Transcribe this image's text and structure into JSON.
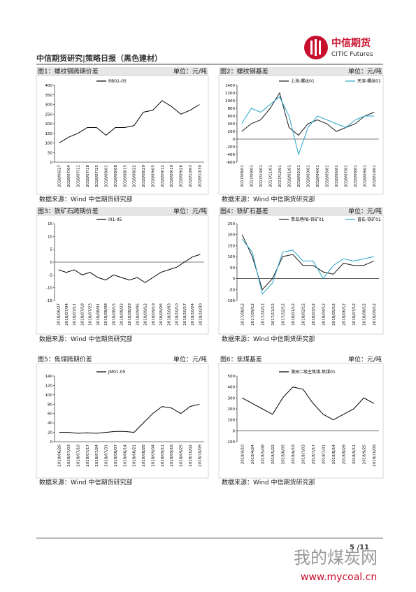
{
  "header": {
    "title": "中信期货研究|策略日报（黑色建材）",
    "logo_cn": "中信期货",
    "logo_en": "CITIC Futures"
  },
  "chart_data": [
    {
      "type": "line",
      "title": "图1：螺纹钢跨期价差",
      "unit": "单位：元/吨",
      "source": "数据来源：Wind 中信期货研究部",
      "categories": [
        "2018/06/27",
        "2018/07/04",
        "2018/07/11",
        "2018/07/18",
        "2018/07/25",
        "2018/08/01",
        "2018/08/08",
        "2018/08/15",
        "2018/08/22",
        "2018/08/29",
        "2018/09/05",
        "2018/09/12",
        "2018/09/19",
        "2018/09/26",
        "2018/10/03",
        "2018/10/30"
      ],
      "series": [
        {
          "name": "RB01-05",
          "color": "#000000",
          "values": [
            100,
            130,
            150,
            180,
            180,
            140,
            180,
            180,
            190,
            260,
            270,
            320,
            290,
            250,
            270,
            300
          ]
        }
      ],
      "ylim": [
        0,
        400
      ],
      "yticks": [
        0,
        50,
        100,
        150,
        200,
        250,
        300,
        350,
        400
      ]
    },
    {
      "type": "line",
      "title": "图2：螺纹钢基差",
      "unit": "单位：元/吨",
      "source": "数据来源：Wind 中信期货研究部",
      "categories": [
        "2017/08/01",
        "2017/09/01",
        "2017/10/01",
        "2017/11/01",
        "2017/12/01",
        "2018/01/01",
        "2018/02/01",
        "2018/03/01",
        "2018/04/01",
        "2018/05/01",
        "2018/06/01",
        "2018/07/01",
        "2018/08/01",
        "2018/09/01",
        "2018/10/01"
      ],
      "series": [
        {
          "name": "上海-螺纹01",
          "color": "#1a1a1a",
          "values": [
            200,
            400,
            500,
            800,
            1200,
            300,
            100,
            400,
            500,
            400,
            200,
            300,
            400,
            600,
            700
          ]
        },
        {
          "name": "天津-螺纹01",
          "color": "#2aa7c9",
          "values": [
            400,
            800,
            700,
            900,
            1100,
            600,
            -400,
            300,
            600,
            500,
            400,
            300,
            500,
            600,
            600
          ]
        }
      ],
      "ylim": [
        -600,
        1400
      ],
      "yticks": [
        -600,
        -400,
        -200,
        0,
        200,
        400,
        600,
        800,
        1000,
        1200,
        1400
      ]
    },
    {
      "type": "line",
      "title": "图3：铁矿石跨期价差",
      "unit": "单位：元/吨",
      "source": "数据来源：Wind 中信期货研究部",
      "categories": [
        "2018/06/27",
        "2018/07/04",
        "2018/07/11",
        "2018/07/18",
        "2018/07/25",
        "2018/08/01",
        "2018/08/08",
        "2018/08/15",
        "2018/08/22",
        "2018/08/29",
        "2018/09/05",
        "2018/09/12",
        "2018/09/19",
        "2018/09/26",
        "2018/10/03",
        "2018/10/10",
        "2018/10/17",
        "2018/10/24",
        "2018/10/30"
      ],
      "series": [
        {
          "name": "I01-05",
          "color": "#000000",
          "values": [
            -3,
            -4,
            -3,
            -5,
            -4,
            -6,
            -7,
            -5,
            -6,
            -7,
            -6,
            -8,
            -6,
            -4,
            -3,
            -2,
            0,
            2,
            3
          ]
        }
      ],
      "ylim": [
        -15,
        15
      ],
      "yticks": [
        -15,
        -10,
        -5,
        0,
        5,
        10,
        15
      ]
    },
    {
      "type": "line",
      "title": "图4：铁矿石基差",
      "unit": "单位：元/吨",
      "source": "数据来源：Wind 中信期货研究部",
      "categories": [
        "2017/08/12",
        "2017/09/12",
        "2017/10/12",
        "2017/11/12",
        "2017/12/12",
        "2018/01/12",
        "2018/02/12",
        "2018/03/12",
        "2018/04/12",
        "2018/05/12",
        "2018/06/12",
        "2018/07/12",
        "2018/08/12",
        "2018/09/12"
      ],
      "series": [
        {
          "name": "青岛港PB-铁矿01",
          "color": "#1a1a1a",
          "values": [
            200,
            100,
            -50,
            0,
            100,
            110,
            60,
            60,
            30,
            20,
            70,
            60,
            60,
            80
          ]
        },
        {
          "name": "普氏-铁矿01",
          "color": "#2aa7c9",
          "values": [
            180,
            120,
            -70,
            -20,
            120,
            130,
            80,
            80,
            0,
            60,
            90,
            80,
            90,
            100
          ]
        }
      ],
      "ylim": [
        -100,
        250
      ],
      "yticks": [
        -100,
        -50,
        0,
        50,
        100,
        150,
        200,
        250
      ]
    },
    {
      "type": "line",
      "title": "图5：焦煤跨期价差",
      "unit": "单位：元/吨",
      "source": "数据来源：Wind 中信期货研究部",
      "categories": [
        "2018/06/26",
        "2018/07/03",
        "2018/07/10",
        "2018/07/17",
        "2018/07/24",
        "2018/07/31",
        "2018/08/07",
        "2018/08/14",
        "2018/08/21",
        "2018/08/28",
        "2018/09/04",
        "2018/09/11",
        "2018/09/18",
        "2018/09/25",
        "2018/10/02",
        "2018/10/09"
      ],
      "series": [
        {
          "name": "JM01-05",
          "color": "#000000",
          "values": [
            20,
            20,
            18,
            19,
            18,
            20,
            22,
            22,
            20,
            40,
            60,
            75,
            72,
            60,
            75,
            80
          ]
        }
      ],
      "ylim": [
        0,
        140
      ],
      "yticks": [
        0,
        20,
        40,
        60,
        80,
        100,
        120,
        140
      ]
    },
    {
      "type": "line",
      "title": "图6：焦煤基差",
      "unit": "单位：元/吨",
      "source": "数据来源：Wind 中信期货研究部",
      "categories": [
        "2018/4/10",
        "2018/4/24",
        "2018/5/08",
        "2018/5/22",
        "2018/6/05",
        "2018/6/19",
        "2018/7/03",
        "2018/7/17",
        "2018/7/31",
        "2018/8/14",
        "2018/8/28",
        "2018/9/11",
        "2018/9/25",
        "2018/10/09"
      ],
      "series": [
        {
          "name": "澳洲二级主焦煤-焦煤01",
          "color": "#000000",
          "values": [
            300,
            250,
            200,
            150,
            300,
            400,
            380,
            250,
            150,
            100,
            150,
            200,
            300,
            250
          ]
        }
      ],
      "ylim": [
        -100,
        500
      ],
      "yticks": [
        -100,
        0,
        100,
        200,
        300,
        400,
        500
      ]
    }
  ],
  "footer": {
    "page": "5 /11"
  },
  "watermark": {
    "cn": "我的煤炭网",
    "url": "www.mycoal.cn"
  }
}
